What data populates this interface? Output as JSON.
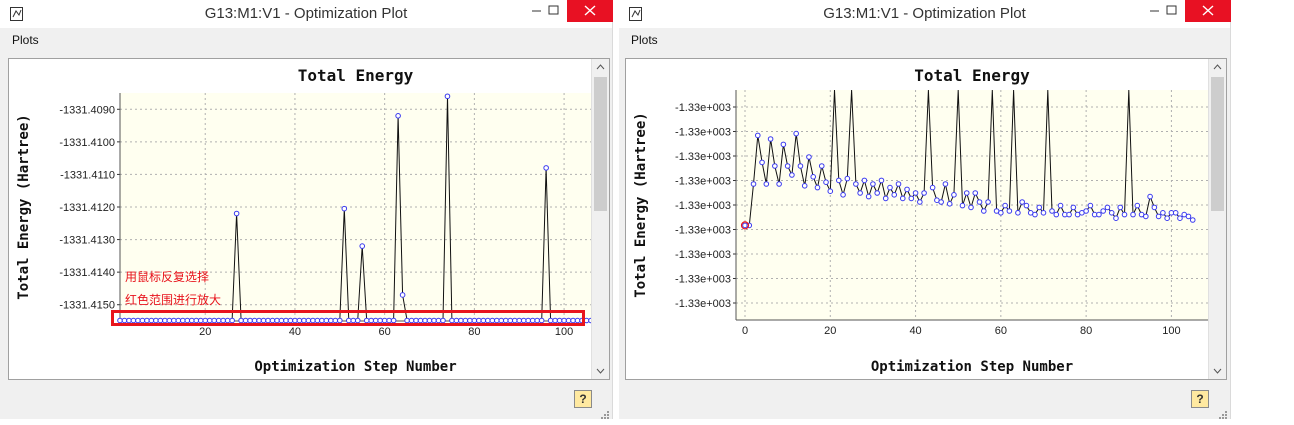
{
  "windows": {
    "left": {
      "title": "G13:M1:V1 - Optimization Plot",
      "menu": "Plots",
      "plot": {
        "title": "Total Energy",
        "xlabel": "Optimization Step Number",
        "ylabel": "Total Energy (Hartree)",
        "x_ticks": [
          "20",
          "40",
          "60",
          "80",
          "100"
        ],
        "y_ticks": [
          "-1331.4090",
          "-1331.4100",
          "-1331.4110",
          "-1331.4120",
          "-1331.4130",
          "-1331.4140",
          "-1331.4150"
        ]
      },
      "annotation_line1": "用鼠标反复选择",
      "annotation_line2": "红色范围进行放大"
    },
    "right": {
      "title": "G13:M1:V1 - Optimization Plot",
      "menu": "Plots",
      "plot": {
        "title": "Total Energy",
        "xlabel": "Optimization Step Number",
        "ylabel": "Total Energy (Hartree)",
        "x_ticks": [
          "0",
          "20",
          "40",
          "60",
          "80",
          "100"
        ],
        "y_ticks": [
          "-1.33e+003",
          "-1.33e+003",
          "-1.33e+003",
          "-1.33e+003",
          "-1.33e+003",
          "-1.33e+003",
          "-1.33e+003",
          "-1.33e+003",
          "-1.33e+003"
        ]
      }
    }
  },
  "colors": {
    "plot_bg": "#fffff0",
    "marker": "#3a3af0",
    "highlight": "#e8141c"
  },
  "chart_data": [
    {
      "type": "line",
      "title": "Total Energy",
      "xlabel": "Optimization Step Number",
      "ylabel": "Total Energy (Hartree)",
      "xlim": [
        1,
        106
      ],
      "ylim": [
        -1331.4155,
        -1331.4085
      ],
      "spikes": [
        {
          "x": 27,
          "y": -1331.4122
        },
        {
          "x": 51,
          "y": -1331.41205
        },
        {
          "x": 55,
          "y": -1331.4132
        },
        {
          "x": 63,
          "y": -1331.4092
        },
        {
          "x": 64,
          "y": -1331.4147
        },
        {
          "x": 74,
          "y": -1331.4086
        },
        {
          "x": 96,
          "y": -1331.4108
        }
      ],
      "baseline": -1331.4155,
      "n_points": 106
    },
    {
      "type": "line",
      "title": "Total Energy",
      "xlabel": "Optimization Step Number",
      "ylabel": "Total Energy (Hartree)",
      "xlim": [
        0,
        106
      ],
      "y_index_range": [
        0,
        9
      ],
      "series": [
        {
          "name": "Total Energy",
          "values": [
            5.3,
            5.3,
            3.0,
            0.3,
            1.8,
            3.0,
            0.5,
            2.0,
            3.0,
            0.8,
            2.0,
            2.5,
            0.2,
            2.0,
            3.1,
            1.5,
            2.6,
            3.2,
            2.0,
            2.9,
            3.4,
            9.0,
            2.8,
            3.6,
            2.7,
            9.0,
            3.0,
            3.5,
            2.8,
            3.7,
            3.0,
            3.5,
            2.8,
            3.8,
            3.2,
            3.6,
            3.0,
            3.8,
            3.3,
            3.8,
            3.5,
            4.0,
            3.5,
            9.0,
            3.2,
            3.9,
            4.0,
            3.0,
            4.1,
            3.6,
            9.0,
            4.2,
            3.5,
            4.3,
            3.5,
            4.0,
            4.5,
            4.0,
            9.0,
            4.5,
            4.6,
            4.2,
            4.5,
            9.0,
            4.6,
            4.0,
            4.2,
            4.6,
            4.7,
            4.3,
            4.6,
            9.0,
            4.5,
            4.7,
            4.2,
            4.7,
            4.7,
            4.3,
            4.7,
            4.6,
            4.5,
            4.2,
            4.7,
            4.7,
            4.5,
            4.3,
            4.6,
            4.9,
            4.3,
            4.7,
            9.0,
            4.7,
            4.2,
            4.7,
            4.8,
            3.7,
            4.3,
            4.8,
            4.6,
            4.9,
            4.6,
            4.6,
            4.9,
            4.7,
            4.8,
            5.0
          ]
        }
      ]
    }
  ]
}
